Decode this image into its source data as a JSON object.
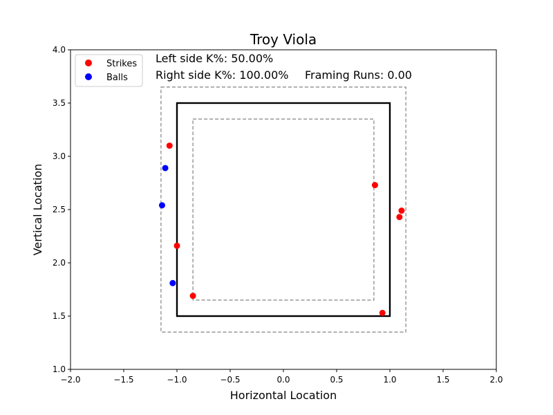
{
  "chart_data": {
    "type": "scatter",
    "title": "Troy Viola",
    "xlabel": "Horizontal Location",
    "ylabel": "Vertical Location",
    "xlim": [
      -2.0,
      2.0
    ],
    "ylim": [
      1.0,
      4.0
    ],
    "x_ticks": [
      "−2.0",
      "−1.5",
      "−1.0",
      "−0.5",
      "0.0",
      "0.5",
      "1.0",
      "1.5",
      "2.0"
    ],
    "y_ticks": [
      "1.0",
      "1.5",
      "2.0",
      "2.5",
      "3.0",
      "3.5",
      "4.0"
    ],
    "grid": false,
    "legend_position": "top-left",
    "annotations": {
      "left_k": "Left side K%: 50.00%",
      "right_k": "Right side K%: 100.00%",
      "framing": "Framing Runs: 0.00"
    },
    "strike_zone": {
      "x": [
        -1.0,
        1.0
      ],
      "y": [
        1.5,
        3.5
      ]
    },
    "outer_zone": {
      "x": [
        -1.15,
        1.15
      ],
      "y": [
        1.35,
        3.65
      ]
    },
    "inner_zone": {
      "x": [
        -0.85,
        0.85
      ],
      "y": [
        1.65,
        3.35
      ]
    },
    "series": [
      {
        "name": "Strikes",
        "color": "#ff0000",
        "points": [
          {
            "x": -1.07,
            "y": 3.1
          },
          {
            "x": -1.0,
            "y": 2.16
          },
          {
            "x": -0.85,
            "y": 1.69
          },
          {
            "x": 0.86,
            "y": 2.73
          },
          {
            "x": 1.11,
            "y": 2.49
          },
          {
            "x": 1.09,
            "y": 2.43
          },
          {
            "x": 0.93,
            "y": 1.53
          }
        ]
      },
      {
        "name": "Balls",
        "color": "#0000ff",
        "points": [
          {
            "x": -1.11,
            "y": 2.89
          },
          {
            "x": -1.14,
            "y": 2.54
          },
          {
            "x": -1.04,
            "y": 1.81
          }
        ]
      }
    ]
  }
}
